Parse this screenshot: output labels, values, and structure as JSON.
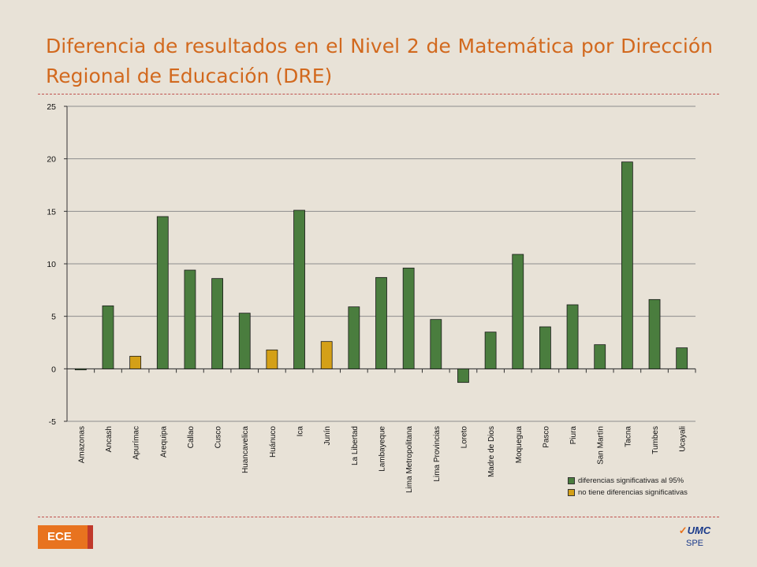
{
  "slide": {
    "title": "Diferencia de resultados en el Nivel 2 de Matemática por Dirección Regional de Educación (DRE)",
    "badge": "ECE",
    "logo_text": "UMC",
    "logo_sub": "SPE"
  },
  "colors": {
    "significant": "#4a7d3e",
    "not_significant": "#d4a017",
    "accent": "#d2691e"
  },
  "chart_data": {
    "type": "bar",
    "categories": [
      "Amazonas",
      "Ancash",
      "Apurímac",
      "Arequipa",
      "Callao",
      "Cusco",
      "Huancavelica",
      "Huánuco",
      "Ica",
      "Junín",
      "La Libertad",
      "Lambayeque",
      "Lima Metropolitana",
      "Lima Provincias",
      "Loreto",
      "Madre de Dios",
      "Moquegua",
      "Pasco",
      "Piura",
      "San Martín",
      "Tacna",
      "Tumbes",
      "Ucayali"
    ],
    "values": [
      -0.1,
      6.0,
      1.2,
      14.5,
      9.4,
      8.6,
      5.3,
      1.8,
      15.1,
      2.6,
      5.9,
      8.7,
      9.6,
      4.7,
      -1.3,
      3.5,
      10.9,
      4.0,
      6.1,
      2.3,
      19.7,
      6.6,
      2.0
    ],
    "significant": [
      true,
      true,
      false,
      true,
      true,
      true,
      true,
      false,
      true,
      false,
      true,
      true,
      true,
      true,
      true,
      true,
      true,
      true,
      true,
      true,
      true,
      true,
      true
    ],
    "ylim": [
      -5,
      25
    ],
    "yticks": [
      -5,
      0,
      5,
      10,
      15,
      20,
      25
    ],
    "grid": true,
    "legend": [
      {
        "label": "diferencias significativas al 95%",
        "color": "#4a7d3e"
      },
      {
        "label": "no tiene diferencias significativas",
        "color": "#d4a017"
      }
    ],
    "legend_position": "bottom-right"
  }
}
